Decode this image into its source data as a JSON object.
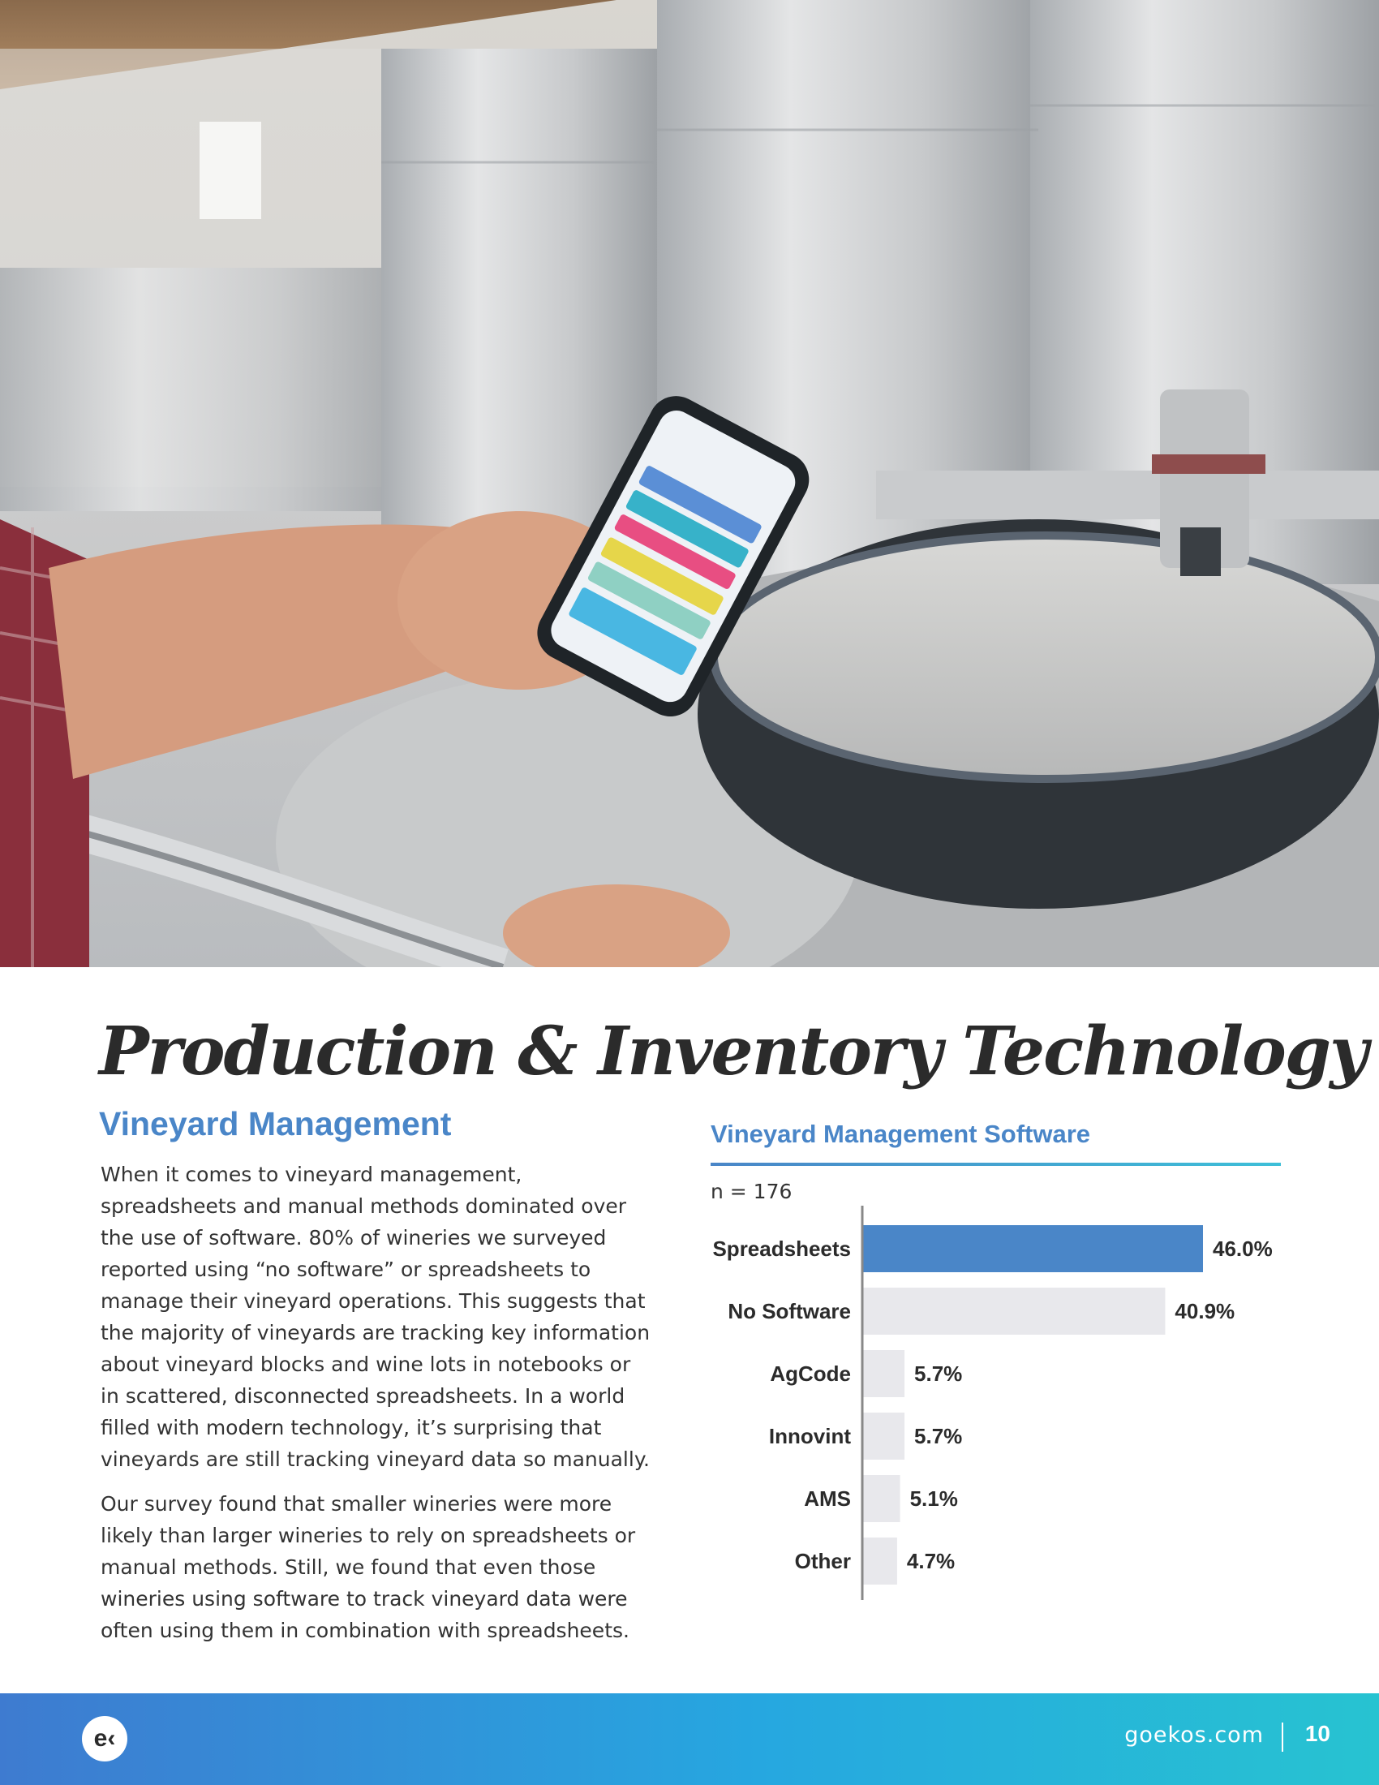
{
  "page_title": "Production & Inventory Technology",
  "section_heading": "Vineyard Management",
  "paragraphs": [
    "When it comes to vineyard management, spreadsheets and manual methods dominated over the use of software. 80% of wineries we surveyed reported using “no software” or spreadsheets to manage their vineyard operations. This suggests that the majority of vineyards are tracking key information about vineyard blocks and wine lots in notebooks or in scattered, disconnected spreadsheets. In a world filled with modern technology, it’s surprising that vineyards are still tracking vineyard data so manually.",
    "Our survey found that smaller wineries were more likely than larger wineries to rely on spreadsheets or manual methods. Still, we found that even those wineries using software to track vineyard data were often using them in combination with spreadsheets."
  ],
  "chart_data": {
    "type": "bar",
    "orientation": "horizontal",
    "title": "Vineyard Management Software",
    "note": "n = 176",
    "categories": [
      "Spreadsheets",
      "No Software",
      "AgCode",
      "Innovint",
      "AMS",
      "Other"
    ],
    "values": [
      46.0,
      40.9,
      5.7,
      5.7,
      5.1,
      4.7
    ],
    "value_labels": [
      "46.0%",
      "40.9%",
      "5.7%",
      "5.7%",
      "5.1%",
      "4.7%"
    ],
    "highlight_color": "#4a86c8",
    "bar_color": "#e8e8ec",
    "axis_color": "#888888"
  },
  "footer": {
    "logo_text": "e‹",
    "site": "goekos.com",
    "page_number": "10"
  }
}
